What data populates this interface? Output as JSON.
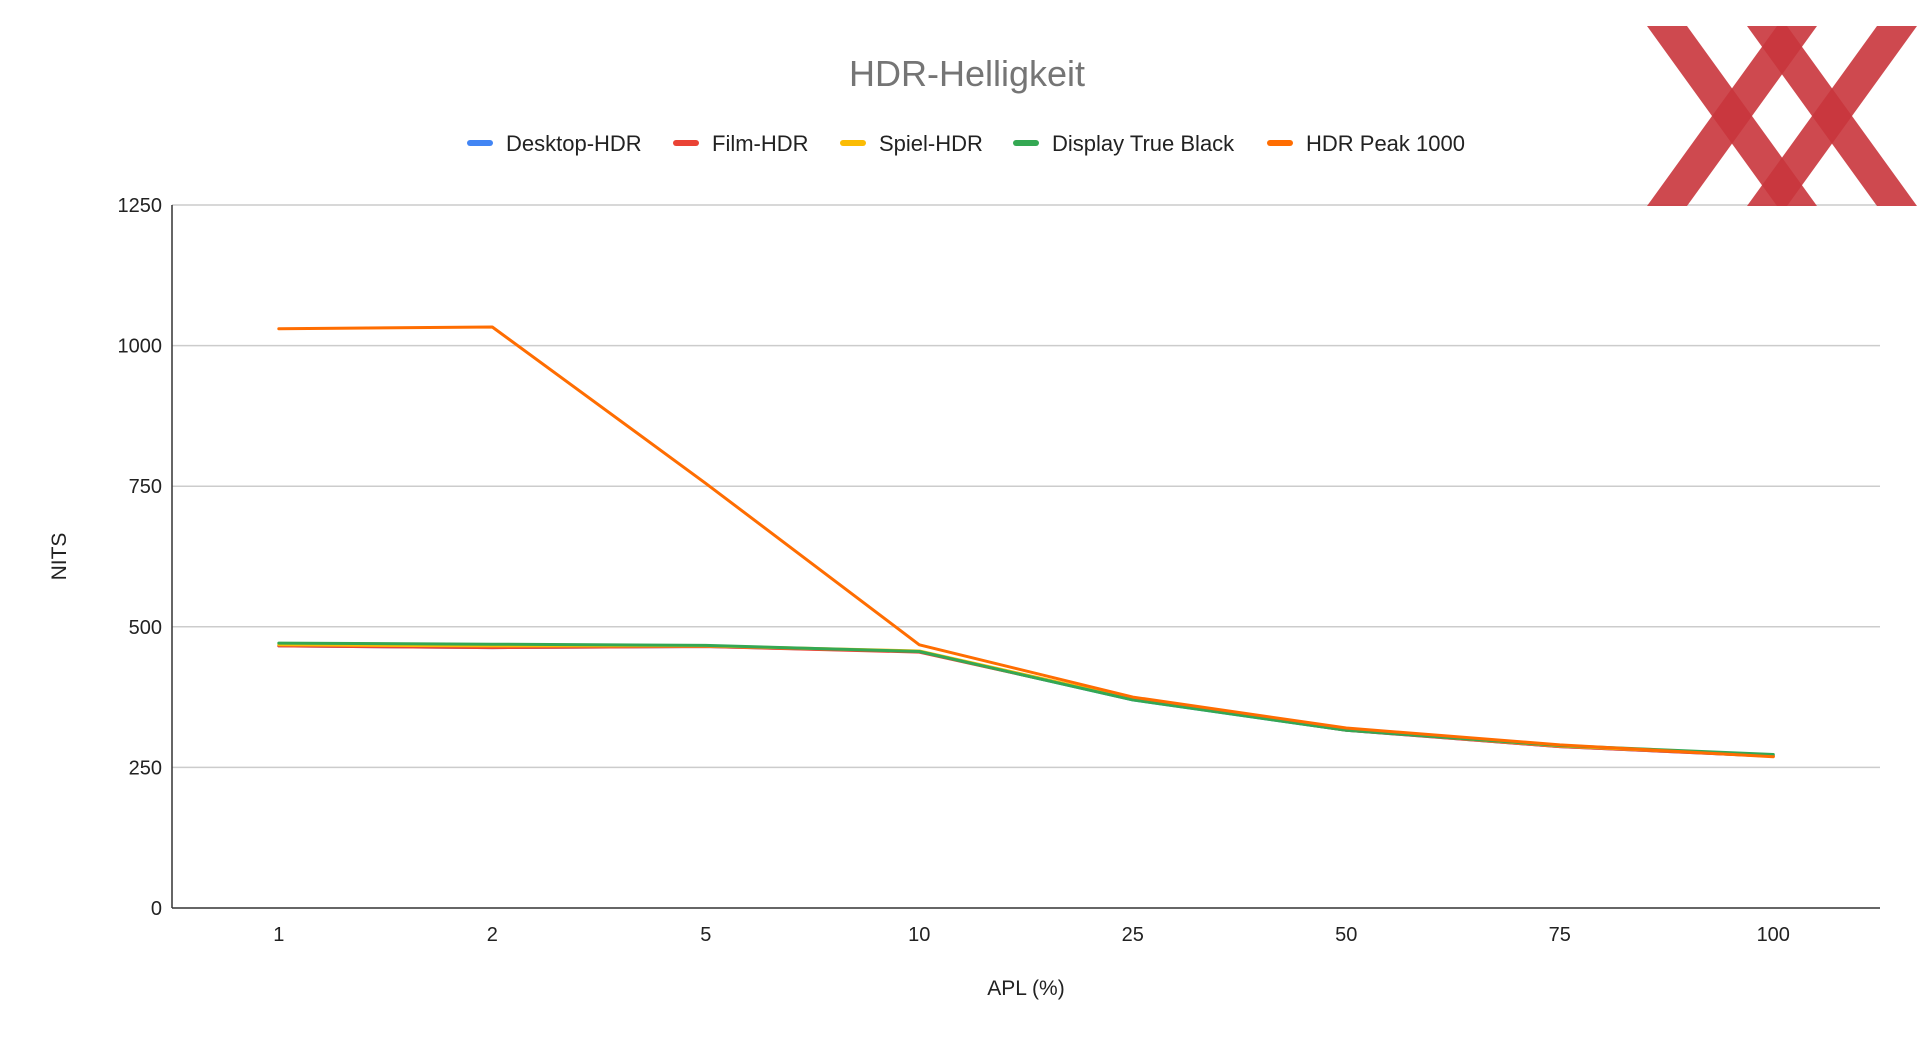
{
  "chart_data": {
    "type": "line",
    "title": "HDR-Helligkeit",
    "xlabel": "APL (%)",
    "ylabel": "NITS",
    "categories": [
      "1",
      "2",
      "5",
      "10",
      "25",
      "50",
      "75",
      "100"
    ],
    "ylim": [
      0,
      1250
    ],
    "yticks": [
      0,
      250,
      500,
      750,
      1000,
      1250
    ],
    "grid": true,
    "legend_position": "top",
    "series": [
      {
        "name": "Desktop-HDR",
        "color": "#4285f4",
        "values": [
          466,
          463,
          465,
          456,
          370,
          316,
          287,
          270
        ]
      },
      {
        "name": "Film-HDR",
        "color": "#ea4335",
        "values": [
          466,
          463,
          465,
          455,
          371,
          316,
          287,
          270
        ]
      },
      {
        "name": "Spiel-HDR",
        "color": "#fbbc04",
        "values": [
          468,
          466,
          466,
          457,
          372,
          317,
          288,
          271
        ]
      },
      {
        "name": "Display True Black",
        "color": "#34a853",
        "values": [
          471,
          469,
          467,
          456,
          370,
          316,
          289,
          273
        ]
      },
      {
        "name": "HDR Peak 1000",
        "color": "#ff6d01",
        "values": [
          1030,
          1033,
          755,
          468,
          375,
          320,
          290,
          269
        ]
      }
    ]
  },
  "logo": {
    "name": "hardwareluxx-logo",
    "color": "#c9353c"
  }
}
